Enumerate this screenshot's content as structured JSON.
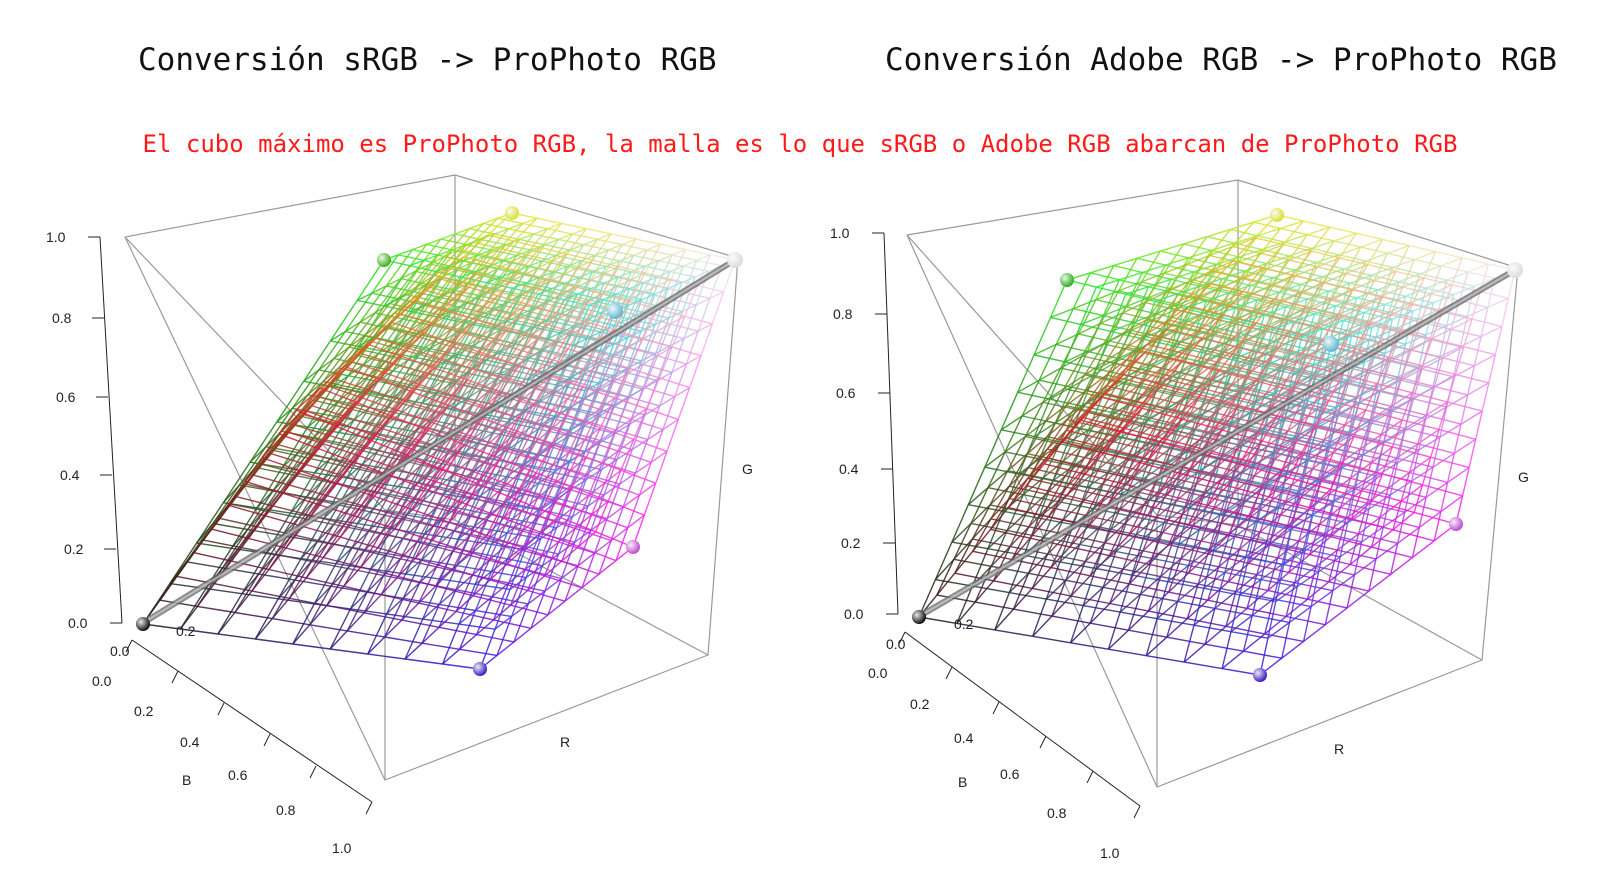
{
  "titles": {
    "left": "Conversión sRGB -> ProPhoto RGB",
    "right": "Conversión Adobe RGB -> ProPhoto RGB",
    "subtitle": "El cubo máximo es ProPhoto RGB, la malla es lo que sRGB o Adobe RGB abarcan de ProPhoto RGB"
  },
  "axes": {
    "vertical_ticks": [
      "0.0",
      "0.2",
      "0.4",
      "0.6",
      "0.8",
      "1.0"
    ],
    "b_ticks": [
      "0.0",
      "0.2",
      "0.4",
      "0.6",
      "0.8",
      "1.0"
    ],
    "r_ticks_visible": [
      "0.0",
      "0.2"
    ],
    "label_g": "G",
    "label_r": "R",
    "label_b": "B"
  },
  "colors": {
    "black": "#111111",
    "white": "#dddddd",
    "green": "#44b020",
    "yellow": "#d8e040",
    "cyan": "#60b8d0",
    "magenta": "#c050d0",
    "blue": "#4020c0"
  }
}
